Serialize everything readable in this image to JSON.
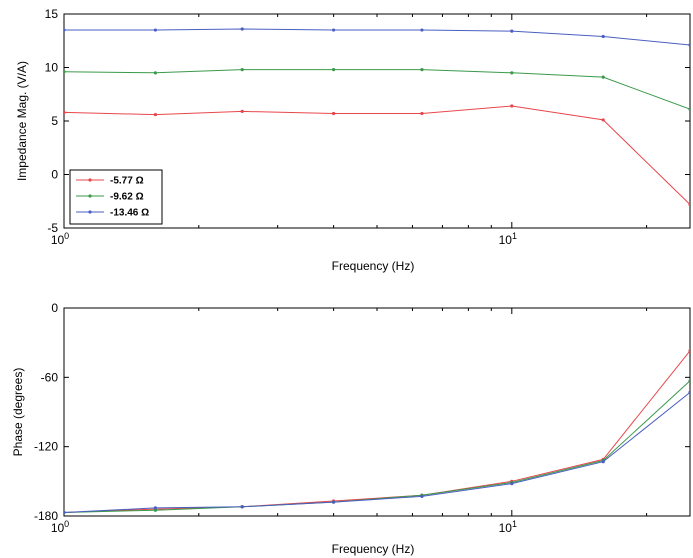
{
  "chart_data": [
    {
      "type": "line",
      "ylabel": "Impedance Mag. (V/A)",
      "xlabel": "Frequency (Hz)",
      "xscale": "log",
      "xlim": [
        1,
        25
      ],
      "ylim": [
        -5,
        15
      ],
      "yticks": [
        "-5",
        "0",
        "5",
        "10",
        "15"
      ],
      "xticks": [
        {
          "base": "10",
          "exp": "0",
          "value": 1
        },
        {
          "base": "10",
          "exp": "1",
          "value": 10
        }
      ],
      "grid": false,
      "legend": "bottom-left",
      "x": [
        1,
        1.6,
        2.5,
        4,
        6.3,
        10,
        16,
        25
      ],
      "series": [
        {
          "name": "-5.77 Ω",
          "color": "#e8474b",
          "values": [
            5.8,
            5.6,
            5.9,
            5.7,
            5.7,
            6.4,
            5.1,
            -2.8
          ]
        },
        {
          "name": "-9.62 Ω",
          "color": "#3a9a4a",
          "values": [
            9.6,
            9.5,
            9.8,
            9.8,
            9.8,
            9.5,
            9.1,
            6.1
          ]
        },
        {
          "name": "-13.46 Ω",
          "color": "#4a5fc0",
          "values": [
            13.5,
            13.5,
            13.6,
            13.5,
            13.5,
            13.4,
            12.9,
            12.1
          ]
        }
      ]
    },
    {
      "type": "line",
      "ylabel": "Phase (degrees)",
      "xlabel": "Frequency (Hz)",
      "xscale": "log",
      "xlim": [
        1,
        25
      ],
      "ylim": [
        -180,
        0
      ],
      "yticks": [
        "-180",
        "-120",
        "-60",
        "0"
      ],
      "xticks": [
        {
          "base": "10",
          "exp": "0",
          "value": 1
        },
        {
          "base": "10",
          "exp": "1",
          "value": 10
        }
      ],
      "grid": false,
      "x": [
        1,
        1.6,
        2.5,
        4,
        6.3,
        10,
        16,
        25
      ],
      "series": [
        {
          "color": "#e8474b",
          "values": [
            -177,
            -174,
            -172,
            -167,
            -162,
            -150,
            -131,
            -37
          ]
        },
        {
          "color": "#3a9a4a",
          "values": [
            -177,
            -175,
            -172,
            -168,
            -162,
            -151,
            -132,
            -63
          ]
        },
        {
          "color": "#4a5fc0",
          "values": [
            -177,
            -173,
            -172,
            -168,
            -163,
            -152,
            -133,
            -73
          ]
        }
      ]
    }
  ]
}
